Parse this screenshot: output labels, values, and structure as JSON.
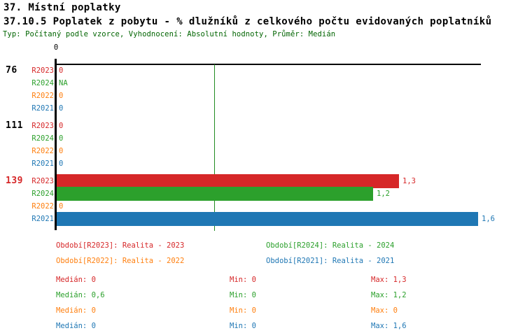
{
  "header": {
    "title": "37. Místní poplatky",
    "subtitle": "37.10.5 Poplatek z pobytu - % dlužníků z celkového počtu evidovaných poplatníků",
    "meta": "Typ: Počítaný podle vzorce, Vyhodnocení: Absolutní hodnoty, Průměr: Medián"
  },
  "colors": {
    "meta_text": "#006400",
    "axis": "#000000",
    "reference_line": "#228b22",
    "title_text": "#000000"
  },
  "chart_data": {
    "type": "bar",
    "orientation": "horizontal",
    "title": "37.10.5 Poplatek z pobytu - % dlužníků z celkového počtu evidovaných poplatníků",
    "x_axis": {
      "tick_labels": [
        "0"
      ],
      "xlim": [
        0,
        1.62
      ],
      "grid": false
    },
    "reference_line": {
      "value": 0.6,
      "color": "#228b22"
    },
    "series_order": [
      "R2023",
      "R2024",
      "R2022",
      "R2021"
    ],
    "series_colors": {
      "R2023": "#d62728",
      "R2024": "#2ca02c",
      "R2022": "#ff7f0e",
      "R2021": "#1f77b4"
    },
    "groups": [
      {
        "label": "76",
        "label_color": "#000000",
        "rows": [
          {
            "series": "R2023",
            "value": 0,
            "display": "0"
          },
          {
            "series": "R2024",
            "value": null,
            "display": "NA"
          },
          {
            "series": "R2022",
            "value": 0,
            "display": "0"
          },
          {
            "series": "R2021",
            "value": 0,
            "display": "0"
          }
        ]
      },
      {
        "label": "111",
        "label_color": "#000000",
        "rows": [
          {
            "series": "R2023",
            "value": 0,
            "display": "0"
          },
          {
            "series": "R2024",
            "value": 0,
            "display": "0"
          },
          {
            "series": "R2022",
            "value": 0,
            "display": "0"
          },
          {
            "series": "R2021",
            "value": 0,
            "display": "0"
          }
        ]
      },
      {
        "label": "139",
        "label_color": "#d62728",
        "rows": [
          {
            "series": "R2023",
            "value": 1.3,
            "display": "1,3"
          },
          {
            "series": "R2024",
            "value": 1.2,
            "display": "1,2"
          },
          {
            "series": "R2022",
            "value": 0,
            "display": "0"
          },
          {
            "series": "R2021",
            "value": 1.6,
            "display": "1,6"
          }
        ]
      }
    ]
  },
  "legend": {
    "items": [
      {
        "series": "R2023",
        "label": "Období[R2023]: Realita - 2023"
      },
      {
        "series": "R2024",
        "label": "Období[R2024]: Realita - 2024"
      },
      {
        "series": "R2022",
        "label": "Období[R2022]: Realita - 2022"
      },
      {
        "series": "R2021",
        "label": "Období[R2021]: Realita - 2021"
      }
    ]
  },
  "stats": {
    "rows": [
      {
        "series": "R2023",
        "median": "Medián: 0",
        "min": "Min: 0",
        "max": "Max: 1,3"
      },
      {
        "series": "R2024",
        "median": "Medián: 0,6",
        "min": "Min: 0",
        "max": "Max: 1,2"
      },
      {
        "series": "R2022",
        "median": "Medián: 0",
        "min": "Min: 0",
        "max": "Max: 0"
      },
      {
        "series": "R2021",
        "median": "Medián: 0",
        "min": "Min: 0",
        "max": "Max: 1,6"
      }
    ]
  }
}
